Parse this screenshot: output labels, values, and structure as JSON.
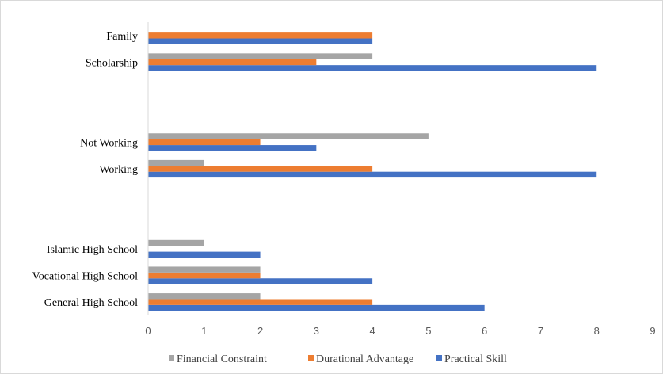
{
  "chart_data": {
    "type": "bar",
    "orientation": "horizontal",
    "categories": [
      "General High School",
      "Vocational High School",
      "Islamic High School ",
      "",
      "",
      "Working",
      "Not Working",
      "",
      "",
      "Scholarship",
      "Family"
    ],
    "series": [
      {
        "name": "Practical Skill",
        "color": "#4472C4",
        "values": [
          6,
          4,
          2,
          null,
          null,
          8,
          3,
          null,
          null,
          8,
          4
        ]
      },
      {
        "name": "Durational Advantage",
        "color": "#ED7D31",
        "values": [
          4,
          2,
          0,
          null,
          null,
          4,
          2,
          null,
          null,
          3,
          4
        ]
      },
      {
        "name": "Financial Constraint",
        "color": "#A5A5A5",
        "values": [
          2,
          2,
          1,
          null,
          null,
          1,
          5,
          null,
          null,
          4,
          0
        ]
      }
    ],
    "xlim": [
      0,
      9
    ],
    "x_ticks": [
      "0",
      "1",
      "2",
      "3",
      "4",
      "5",
      "6",
      "7",
      "8",
      "9"
    ],
    "grid": false,
    "legend_position": "bottom",
    "title": "",
    "xlabel": "",
    "ylabel": ""
  }
}
